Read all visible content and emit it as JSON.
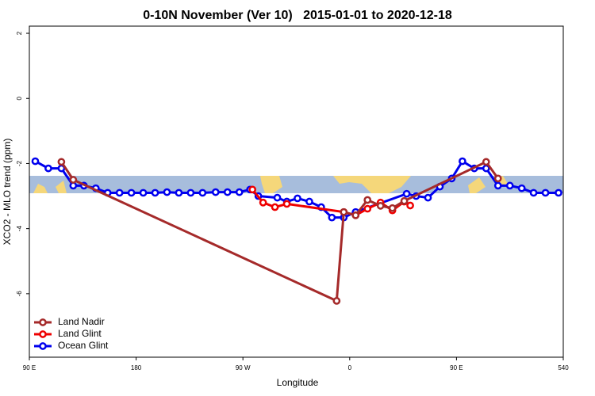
{
  "chart_data": {
    "type": "line",
    "title": "0-10N November (Ver 10)   2015-01-01 to 2020-12-18",
    "x_label": "Longitude",
    "y_label": "XCO2 - MLO trend (ppm)",
    "xlim": [
      90,
      540
    ],
    "ylim": [
      -7.95,
      2.22
    ],
    "xticks": [
      {
        "value": 90,
        "label": "90 E"
      },
      180,
      {
        "value": 270,
        "label": "90 W"
      },
      {
        "value": 360,
        "label": "0"
      },
      {
        "value": 450,
        "label": "90 E"
      },
      540
    ],
    "yticks": [
      2,
      0,
      -2,
      -4,
      -6
    ],
    "legend": "bottom-left",
    "series": [
      {
        "name": "Land Nadir",
        "color": "#a52a2a",
        "x": [
          117,
          127,
          349,
          355,
          365,
          375,
          386,
          396,
          406,
          475,
          485
        ],
        "values": [
          -1.95,
          -2.5,
          -6.22,
          -3.49,
          -3.59,
          -3.12,
          -3.3,
          -3.37,
          -3.15,
          -1.95,
          -2.46
        ]
      },
      {
        "name": "Land Glint",
        "color": "#ee0000",
        "x": [
          278,
          287,
          297,
          307,
          355,
          365,
          375,
          386,
          396,
          406,
          411
        ],
        "values": [
          -2.8,
          -3.2,
          -3.34,
          -3.24,
          -3.49,
          -3.59,
          -3.39,
          -3.2,
          -3.44,
          -3.17,
          -3.29
        ]
      },
      {
        "name": "Ocean Glint",
        "color": "#0000ee",
        "x": [
          95,
          106,
          117,
          127,
          136,
          146,
          156,
          166,
          176,
          186,
          196,
          206,
          216,
          226,
          236,
          247,
          257,
          267,
          276,
          283,
          299,
          307,
          316,
          326,
          336,
          345,
          355,
          365,
          408,
          416,
          426,
          436,
          446,
          455,
          465,
          475,
          485,
          495,
          505,
          515,
          525,
          536
        ],
        "values": [
          -1.93,
          -2.15,
          -2.15,
          -2.68,
          -2.68,
          -2.76,
          -2.9,
          -2.9,
          -2.9,
          -2.9,
          -2.9,
          -2.88,
          -2.9,
          -2.9,
          -2.9,
          -2.88,
          -2.88,
          -2.88,
          -2.8,
          -3.0,
          -3.05,
          -3.17,
          -3.07,
          -3.17,
          -3.34,
          -3.66,
          -3.66,
          -3.49,
          -2.93,
          -3.0,
          -3.05,
          -2.71,
          -2.46,
          -1.93,
          -2.15,
          -2.15,
          -2.68,
          -2.68,
          -2.76,
          -2.9,
          -2.9,
          -2.9
        ]
      }
    ]
  }
}
